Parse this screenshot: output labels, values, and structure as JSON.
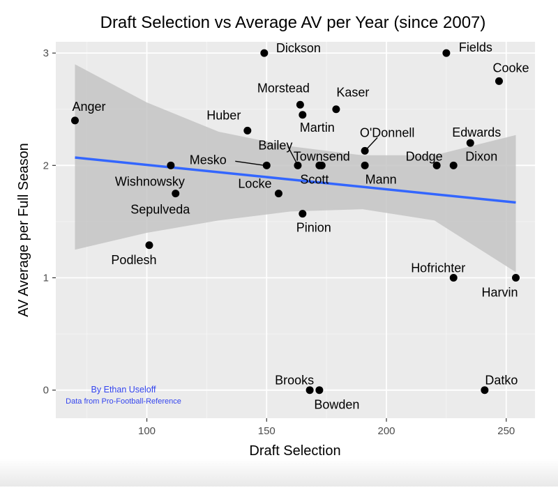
{
  "chart_data": {
    "type": "scatter",
    "title": "Draft Selection vs Average AV per Year (since 2007)",
    "xlabel": "Draft Selection",
    "ylabel": "AV Average per Full Season",
    "xlim": [
      62,
      262
    ],
    "ylim": [
      -0.25,
      3.1
    ],
    "x_ticks": [
      100,
      150,
      200,
      250
    ],
    "x_tick_labels": [
      "100",
      "150",
      "200",
      "250"
    ],
    "y_ticks": [
      0,
      1,
      2,
      3
    ],
    "y_tick_labels": [
      "0",
      "1",
      "2",
      "3"
    ],
    "grid": true,
    "legend": "none",
    "points": [
      {
        "name": "Anger",
        "x": 70,
        "y": 2.4
      },
      {
        "name": "Wishnowsky",
        "x": 110,
        "y": 2.0
      },
      {
        "name": "Sepulveda",
        "x": 112,
        "y": 1.75
      },
      {
        "name": "Podlesh",
        "x": 101,
        "y": 1.29
      },
      {
        "name": "Huber",
        "x": 142,
        "y": 2.31
      },
      {
        "name": "Dickson",
        "x": 149,
        "y": 3.0
      },
      {
        "name": "Mesko",
        "x": 150,
        "y": 2.0
      },
      {
        "name": "Locke",
        "x": 155,
        "y": 1.75
      },
      {
        "name": "Bailey",
        "x": 163,
        "y": 2.0
      },
      {
        "name": "Morstead",
        "x": 164,
        "y": 2.54
      },
      {
        "name": "Martin",
        "x": 165,
        "y": 2.45
      },
      {
        "name": "Pinion",
        "x": 165,
        "y": 1.57
      },
      {
        "name": "Scott",
        "x": 172,
        "y": 2.0
      },
      {
        "name": "Townsend",
        "x": 173,
        "y": 2.0
      },
      {
        "name": "Kaser",
        "x": 179,
        "y": 2.5
      },
      {
        "name": "Mann",
        "x": 191,
        "y": 2.0
      },
      {
        "name": "O'Donnell",
        "x": 191,
        "y": 2.13
      },
      {
        "name": "Dodge",
        "x": 221,
        "y": 2.0
      },
      {
        "name": "Fields",
        "x": 225,
        "y": 3.0
      },
      {
        "name": "Dixon",
        "x": 228,
        "y": 2.0
      },
      {
        "name": "Hofrichter",
        "x": 228,
        "y": 1.0
      },
      {
        "name": "Edwards",
        "x": 235,
        "y": 2.2
      },
      {
        "name": "Cooke",
        "x": 247,
        "y": 2.75
      },
      {
        "name": "Harvin",
        "x": 254,
        "y": 1.0
      },
      {
        "name": "Brooks",
        "x": 168,
        "y": 0.0
      },
      {
        "name": "Bowden",
        "x": 172,
        "y": 0.0
      },
      {
        "name": "Datko",
        "x": 241,
        "y": 0.0
      }
    ],
    "regression": {
      "x": [
        70,
        254
      ],
      "y": [
        2.07,
        1.67
      ]
    },
    "confidence_band": {
      "x": [
        70,
        100,
        130,
        160,
        190,
        220,
        254
      ],
      "upper": [
        2.9,
        2.56,
        2.3,
        2.17,
        2.09,
        2.09,
        2.27
      ],
      "lower": [
        1.25,
        1.4,
        1.51,
        1.59,
        1.61,
        1.51,
        1.05
      ]
    },
    "annotation": {
      "line1": "By Ethan Useloff",
      "line2": "Data from Pro-Football-Reference"
    },
    "colors": {
      "panel": "#ebebeb",
      "grid_major": "#ffffff",
      "grid_minor": "#f4f4f4",
      "band": "#c4c4c4",
      "line": "#3366ff",
      "point": "#000000",
      "annotation": "#3344ee"
    }
  }
}
